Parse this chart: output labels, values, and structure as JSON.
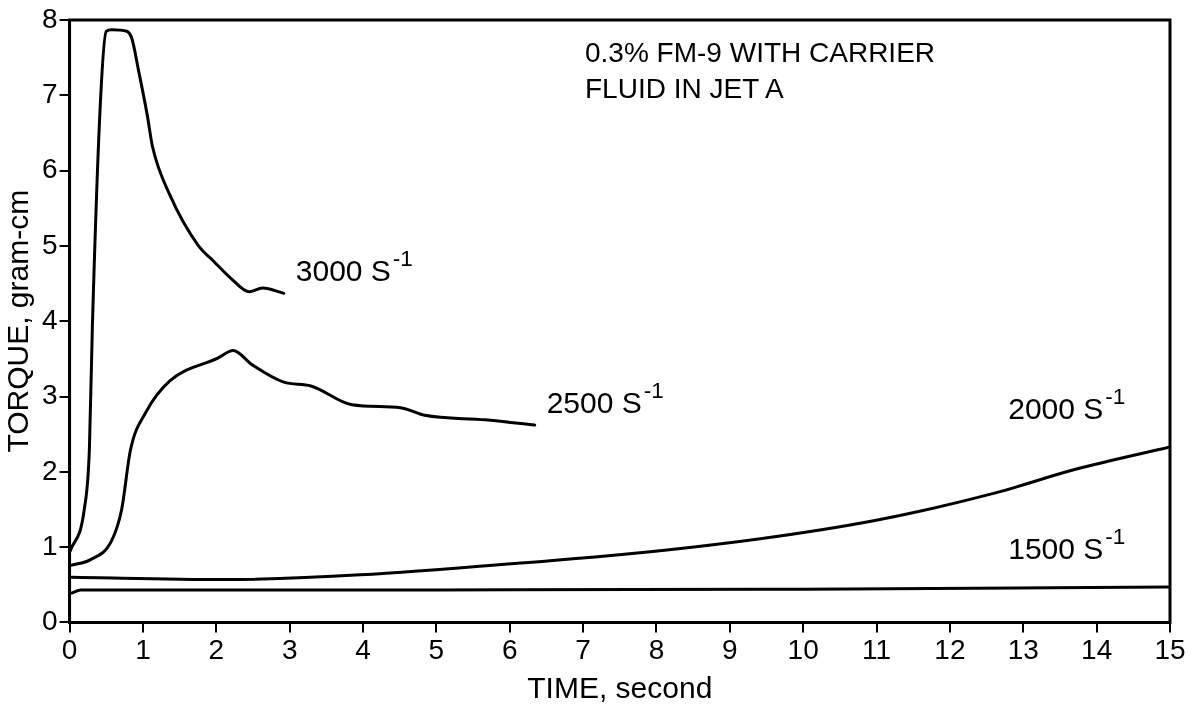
{
  "chart_data": {
    "type": "line",
    "title": "0.3% FM-9 WITH CARRIER FLUID IN JET A",
    "xlabel": "TIME, second",
    "ylabel": "TORQUE, gram-cm",
    "xlim": [
      0,
      15
    ],
    "xticks": [
      0,
      1,
      2,
      3,
      4,
      5,
      6,
      7,
      8,
      9,
      10,
      11,
      12,
      13,
      14,
      15
    ],
    "ylim": [
      0,
      8
    ],
    "yticks": [
      0,
      1,
      2,
      3,
      4,
      5,
      6,
      7,
      8
    ],
    "marker": "none",
    "line_style": "solid",
    "legend": false,
    "series": [
      {
        "name": "3000 S$^{-1}$",
        "color": "#000000",
        "x": [
          0.01,
          0.2,
          0.27,
          0.31,
          0.42,
          0.5,
          0.57,
          0.78,
          0.85,
          0.94,
          1.06,
          1.13,
          1.37,
          1.75,
          1.97,
          2.21,
          2.45,
          2.63,
          2.92
        ],
        "values": [
          0.95,
          1.5,
          2.3,
          3.9,
          6.9,
          7.85,
          7.87,
          7.85,
          7.75,
          7.33,
          6.73,
          6.32,
          5.67,
          5.01,
          4.79,
          4.56,
          4.39,
          4.44,
          4.37
        ]
      },
      {
        "name": "2500 S$^{-1}$",
        "color": "#000000",
        "x": [
          0.03,
          0.28,
          0.57,
          0.71,
          0.83,
          1.04,
          1.37,
          2.02,
          2.23,
          2.49,
          2.92,
          3.29,
          3.85,
          4.51,
          4.84,
          5.67,
          6.34
        ],
        "values": [
          0.76,
          0.83,
          1.08,
          1.5,
          2.29,
          2.79,
          3.21,
          3.51,
          3.61,
          3.42,
          3.19,
          3.14,
          2.89,
          2.85,
          2.75,
          2.69,
          2.62
        ]
      },
      {
        "name": "2000 S$^{-1}$",
        "color": "#000000",
        "x": [
          0.03,
          2.07,
          6.55,
          8.77,
          10.96,
          12.62,
          13.7,
          15
        ],
        "values": [
          0.6,
          0.57,
          0.82,
          1.03,
          1.35,
          1.72,
          2.03,
          2.33
        ]
      },
      {
        "name": "1500 S$^{-1}$",
        "color": "#000000",
        "x": [
          0.03,
          0.15,
          5,
          10,
          15
        ],
        "values": [
          0.39,
          0.43,
          0.43,
          0.44,
          0.47
        ]
      }
    ]
  }
}
